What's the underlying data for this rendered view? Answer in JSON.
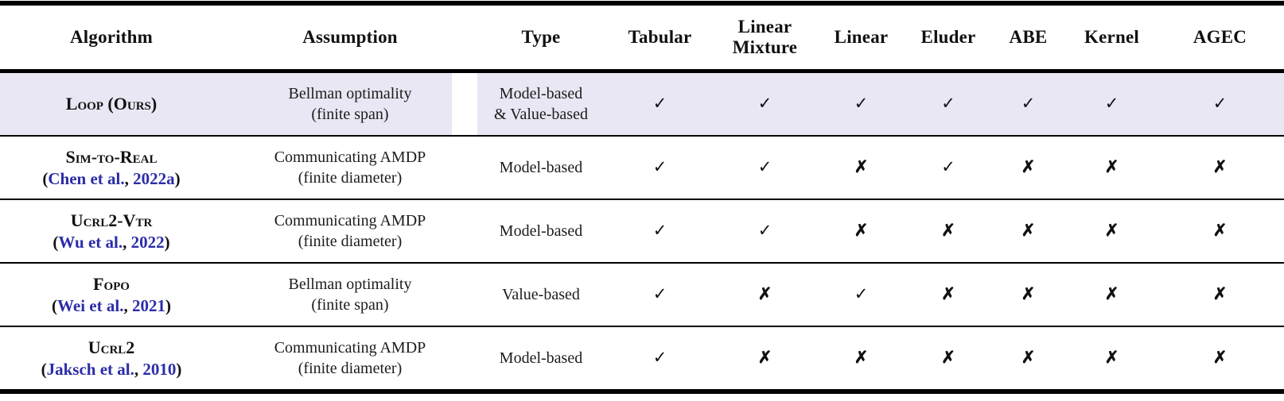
{
  "colors": {
    "highlight_row": "#e8e7f3",
    "citation_link": "#2b2da8",
    "rule": "#000000"
  },
  "glyphs": {
    "check": "✓",
    "cross": "✗",
    "paren_open": "(",
    "paren_close": ")",
    "cite_separator": ", "
  },
  "table": {
    "headers": [
      "Algorithm",
      "Assumption",
      "Type",
      "Tabular",
      "Linear\nMixture",
      "Linear",
      "Eluder",
      "ABE",
      "Kernel",
      "AGEC"
    ],
    "rows": [
      {
        "algorithm": "Loop (Ours)",
        "citation": null,
        "assumption": "Bellman optimality\n(finite span)",
        "type": "Model-based\n& Value-based",
        "marks": [
          "✓",
          "✓",
          "✓",
          "✓",
          "✓",
          "✓",
          "✓"
        ],
        "highlighted": true
      },
      {
        "algorithm": "Sim-to-Real",
        "citation": {
          "author": "Chen et al.",
          "year": "2022a"
        },
        "assumption": "Communicating AMDP\n(finite diameter)",
        "type": "Model-based",
        "marks": [
          "✓",
          "✓",
          "✗",
          "✓",
          "✗",
          "✗",
          "✗"
        ],
        "highlighted": false
      },
      {
        "algorithm": "Ucrl2-Vtr",
        "citation": {
          "author": "Wu et al.",
          "year": "2022"
        },
        "assumption": "Communicating AMDP\n(finite diameter)",
        "type": "Model-based",
        "marks": [
          "✓",
          "✓",
          "✗",
          "✗",
          "✗",
          "✗",
          "✗"
        ],
        "highlighted": false
      },
      {
        "algorithm": "Fopo",
        "citation": {
          "author": "Wei et al.",
          "year": "2021"
        },
        "assumption": "Bellman optimality\n(finite span)",
        "type": "Value-based",
        "marks": [
          "✓",
          "✗",
          "✓",
          "✗",
          "✗",
          "✗",
          "✗"
        ],
        "highlighted": false
      },
      {
        "algorithm": "Ucrl2",
        "citation": {
          "author": "Jaksch et al.",
          "year": "2010"
        },
        "assumption": "Communicating AMDP\n(finite diameter)",
        "type": "Model-based",
        "marks": [
          "✓",
          "✗",
          "✗",
          "✗",
          "✗",
          "✗",
          "✗"
        ],
        "highlighted": false
      }
    ]
  }
}
